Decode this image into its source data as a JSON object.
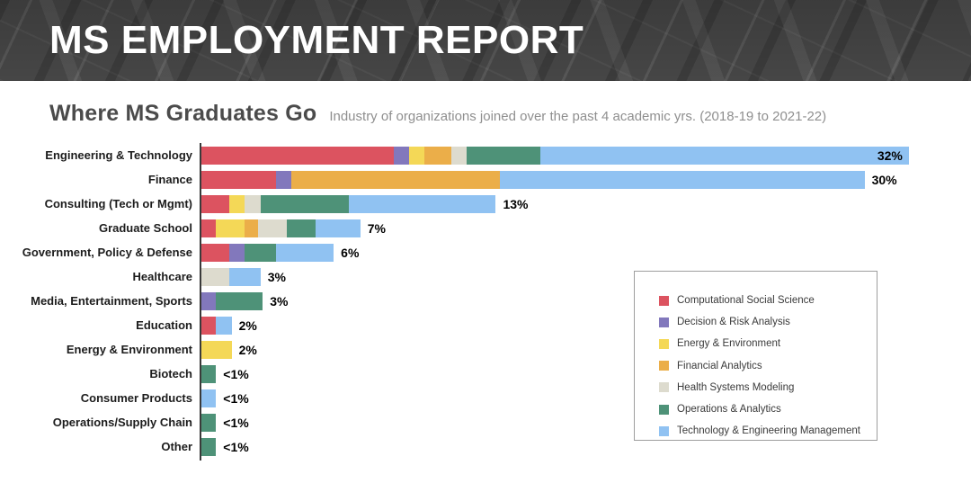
{
  "header": {
    "title": "MS EMPLOYMENT REPORT"
  },
  "section": {
    "title": "Where MS Graduates Go",
    "subtitle": "Industry of organizations joined over the past 4 academic yrs. (2018-19 to 2021-22)"
  },
  "chart_data": {
    "type": "bar",
    "variant": "horizontal-stacked",
    "title": "Where MS Graduates Go",
    "subtitle": "Industry of organizations joined over the past 4 academic yrs. (2018-19 to 2021-22)",
    "unit": "percent",
    "xlim": [
      0,
      34
    ],
    "grid": false,
    "legend_position": "right-inset-box",
    "series": [
      {
        "name": "Computational Social Science",
        "color": "#DC5360"
      },
      {
        "name": "Decision & Risk Analysis",
        "color": "#8278BC"
      },
      {
        "name": "Energy & Environment",
        "color": "#F4D857"
      },
      {
        "name": "Financial Analytics",
        "color": "#EBAE49"
      },
      {
        "name": "Health Systems Modeling",
        "color": "#DDDBCE"
      },
      {
        "name": "Operations & Analytics",
        "color": "#4E9278"
      },
      {
        "name": "Technology & Engineering Management",
        "color": "#90C2F2"
      }
    ],
    "categories": [
      {
        "label": "Engineering & Technology",
        "total_label": "32%",
        "total": 32,
        "label_inside_bar": true,
        "segments": [
          {
            "series": "Computational Social Science",
            "value": 8.7
          },
          {
            "series": "Decision & Risk Analysis",
            "value": 0.7
          },
          {
            "series": "Energy & Environment",
            "value": 0.7
          },
          {
            "series": "Financial Analytics",
            "value": 1.2
          },
          {
            "series": "Health Systems Modeling",
            "value": 0.7
          },
          {
            "series": "Operations & Analytics",
            "value": 3.3
          },
          {
            "series": "Technology & Engineering Management",
            "value": 16.6
          }
        ]
      },
      {
        "label": "Finance",
        "total_label": "30%",
        "total": 30,
        "label_inside_bar": false,
        "segments": [
          {
            "series": "Computational Social Science",
            "value": 3.4
          },
          {
            "series": "Decision & Risk Analysis",
            "value": 0.7
          },
          {
            "series": "Financial Analytics",
            "value": 9.4
          },
          {
            "series": "Technology & Engineering Management",
            "value": 16.4
          }
        ]
      },
      {
        "label": "Consulting (Tech or Mgmt)",
        "total_label": "13%",
        "total": 13,
        "label_inside_bar": false,
        "segments": [
          {
            "series": "Computational Social Science",
            "value": 1.3
          },
          {
            "series": "Energy & Environment",
            "value": 0.7
          },
          {
            "series": "Health Systems Modeling",
            "value": 0.7
          },
          {
            "series": "Operations & Analytics",
            "value": 4.0
          },
          {
            "series": "Technology & Engineering Management",
            "value": 6.6
          }
        ]
      },
      {
        "label": "Graduate School",
        "total_label": "7%",
        "total": 7,
        "label_inside_bar": false,
        "segments": [
          {
            "series": "Computational Social Science",
            "value": 0.7
          },
          {
            "series": "Energy & Environment",
            "value": 1.3
          },
          {
            "series": "Financial Analytics",
            "value": 0.6
          },
          {
            "series": "Health Systems Modeling",
            "value": 1.3
          },
          {
            "series": "Operations & Analytics",
            "value": 1.3
          },
          {
            "series": "Technology & Engineering Management",
            "value": 2.0
          }
        ]
      },
      {
        "label": "Government, Policy & Defense",
        "total_label": "6%",
        "total": 6,
        "label_inside_bar": false,
        "segments": [
          {
            "series": "Computational Social Science",
            "value": 1.3
          },
          {
            "series": "Decision & Risk Analysis",
            "value": 0.7
          },
          {
            "series": "Operations & Analytics",
            "value": 1.4
          },
          {
            "series": "Technology & Engineering Management",
            "value": 2.6
          }
        ]
      },
      {
        "label": "Healthcare",
        "total_label": "3%",
        "total": 3,
        "label_inside_bar": false,
        "segments": [
          {
            "series": "Health Systems Modeling",
            "value": 1.3
          },
          {
            "series": "Technology & Engineering Management",
            "value": 1.4
          }
        ]
      },
      {
        "label": "Media, Entertainment, Sports",
        "total_label": "3%",
        "total": 3,
        "label_inside_bar": false,
        "segments": [
          {
            "series": "Decision & Risk Analysis",
            "value": 0.7
          },
          {
            "series": "Operations & Analytics",
            "value": 2.1
          }
        ]
      },
      {
        "label": "Education",
        "total_label": "2%",
        "total": 2,
        "label_inside_bar": false,
        "segments": [
          {
            "series": "Computational Social Science",
            "value": 0.7
          },
          {
            "series": "Technology & Engineering Management",
            "value": 0.7
          }
        ]
      },
      {
        "label": "Energy & Environment",
        "total_label": "2%",
        "total": 2,
        "label_inside_bar": false,
        "segments": [
          {
            "series": "Energy & Environment",
            "value": 1.4
          }
        ]
      },
      {
        "label": "Biotech",
        "total_label": "<1%",
        "total": 0.7,
        "label_inside_bar": false,
        "segments": [
          {
            "series": "Operations & Analytics",
            "value": 0.7
          }
        ]
      },
      {
        "label": "Consumer Products",
        "total_label": "<1%",
        "total": 0.7,
        "label_inside_bar": false,
        "segments": [
          {
            "series": "Technology & Engineering Management",
            "value": 0.7
          }
        ]
      },
      {
        "label": "Operations/Supply Chain",
        "total_label": "<1%",
        "total": 0.7,
        "label_inside_bar": false,
        "segments": [
          {
            "series": "Operations & Analytics",
            "value": 0.7
          }
        ]
      },
      {
        "label": "Other",
        "total_label": "<1%",
        "total": 0.7,
        "label_inside_bar": false,
        "segments": [
          {
            "series": "Operations & Analytics",
            "value": 0.7
          }
        ]
      }
    ]
  },
  "legend": {
    "items": [
      {
        "label": "Computational Social Science",
        "color": "#DC5360"
      },
      {
        "label": "Decision & Risk Analysis",
        "color": "#8278BC"
      },
      {
        "label": "Energy & Environment",
        "color": "#F4D857"
      },
      {
        "label": "Financial Analytics",
        "color": "#EBAE49"
      },
      {
        "label": "Health Systems Modeling",
        "color": "#DDDBCE"
      },
      {
        "label": "Operations & Analytics",
        "color": "#4E9278"
      },
      {
        "label": "Technology & Engineering Management",
        "color": "#90C2F2"
      }
    ]
  }
}
